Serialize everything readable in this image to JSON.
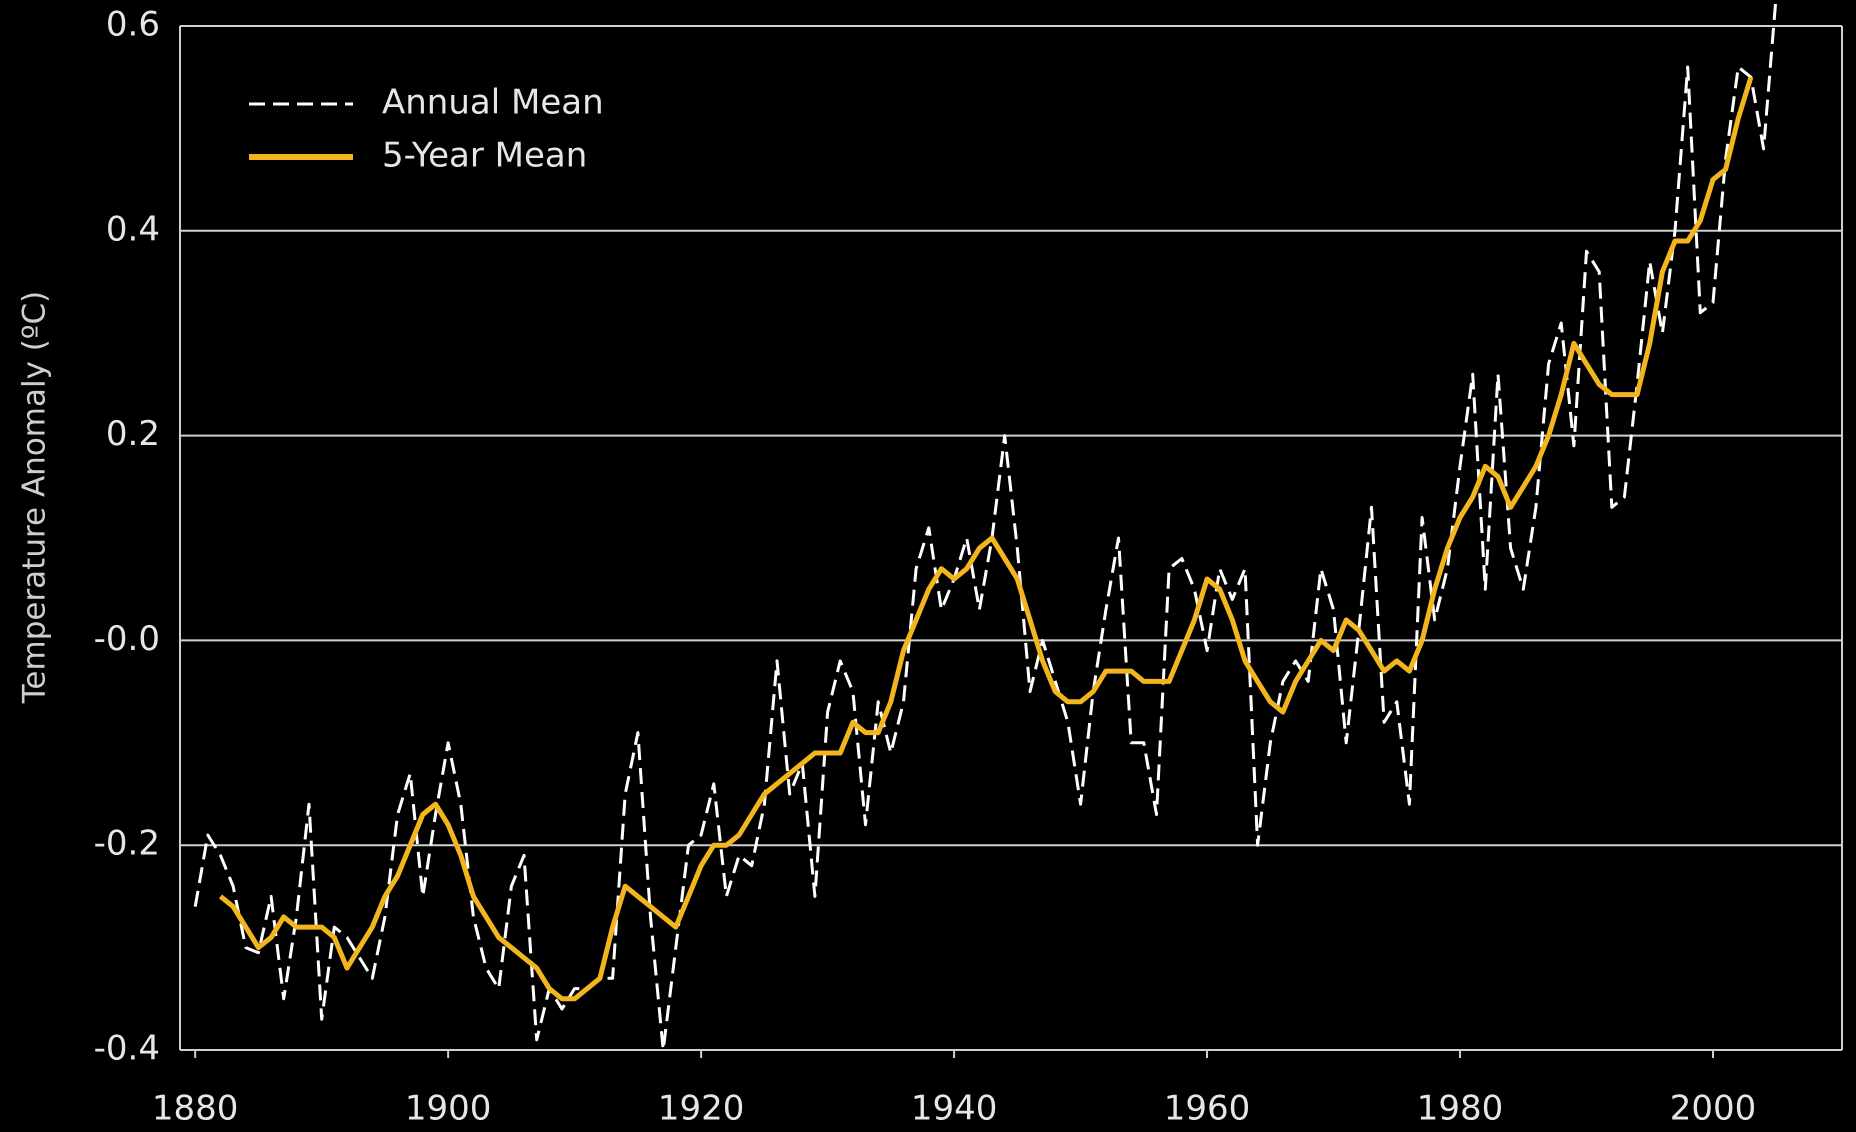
{
  "chart_data": {
    "type": "line",
    "y_label": "Temperature Anomaly (ºC)",
    "x": [
      1880,
      1881,
      1882,
      1883,
      1884,
      1885,
      1886,
      1887,
      1888,
      1889,
      1890,
      1891,
      1892,
      1893,
      1894,
      1895,
      1896,
      1897,
      1898,
      1899,
      1900,
      1901,
      1902,
      1903,
      1904,
      1905,
      1906,
      1907,
      1908,
      1909,
      1910,
      1911,
      1912,
      1913,
      1914,
      1915,
      1916,
      1917,
      1918,
      1919,
      1920,
      1921,
      1922,
      1923,
      1924,
      1925,
      1926,
      1927,
      1928,
      1929,
      1930,
      1931,
      1932,
      1933,
      1934,
      1935,
      1936,
      1937,
      1938,
      1939,
      1940,
      1941,
      1942,
      1943,
      1944,
      1945,
      1946,
      1947,
      1948,
      1949,
      1950,
      1951,
      1952,
      1953,
      1954,
      1955,
      1956,
      1957,
      1958,
      1959,
      1960,
      1961,
      1962,
      1963,
      1964,
      1965,
      1966,
      1967,
      1968,
      1969,
      1970,
      1971,
      1972,
      1973,
      1974,
      1975,
      1976,
      1977,
      1978,
      1979,
      1980,
      1981,
      1982,
      1983,
      1984,
      1985,
      1986,
      1987,
      1988,
      1989,
      1990,
      1991,
      1992,
      1993,
      1994,
      1995,
      1996,
      1997,
      1998,
      1999,
      2000,
      2001,
      2002,
      2003,
      2004,
      2005
    ],
    "series": [
      {
        "name": "Annual Mean",
        "color": "#ffffff",
        "dashed": true,
        "values": [
          -0.26,
          -0.19,
          -0.21,
          -0.24,
          -0.3,
          -0.305,
          -0.25,
          -0.35,
          -0.27,
          -0.16,
          -0.37,
          -0.28,
          -0.29,
          -0.31,
          -0.33,
          -0.27,
          -0.17,
          -0.13,
          -0.25,
          -0.17,
          -0.1,
          -0.16,
          -0.27,
          -0.32,
          -0.34,
          -0.24,
          -0.21,
          -0.39,
          -0.34,
          -0.36,
          -0.34,
          -0.34,
          -0.33,
          -0.33,
          -0.15,
          -0.09,
          -0.27,
          -0.4,
          -0.3,
          -0.2,
          -0.19,
          -0.14,
          -0.25,
          -0.21,
          -0.22,
          -0.16,
          -0.02,
          -0.15,
          -0.12,
          -0.25,
          -0.07,
          -0.02,
          -0.05,
          -0.18,
          -0.06,
          -0.11,
          -0.06,
          0.07,
          0.11,
          0.03,
          0.06,
          0.1,
          0.03,
          0.1,
          0.2,
          0.09,
          -0.05,
          0.0,
          -0.04,
          -0.08,
          -0.16,
          -0.05,
          0.03,
          0.1,
          -0.1,
          -0.1,
          -0.17,
          0.07,
          0.08,
          0.05,
          -0.01,
          0.07,
          0.04,
          0.07,
          -0.2,
          -0.1,
          -0.04,
          -0.02,
          -0.04,
          0.07,
          0.03,
          -0.1,
          0.01,
          0.13,
          -0.08,
          -0.06,
          -0.16,
          0.12,
          0.02,
          0.07,
          0.17,
          0.26,
          0.05,
          0.26,
          0.09,
          0.05,
          0.13,
          0.27,
          0.31,
          0.19,
          0.38,
          0.36,
          0.13,
          0.14,
          0.25,
          0.37,
          0.3,
          0.4,
          0.56,
          0.32,
          0.33,
          0.47,
          0.56,
          0.55,
          0.48,
          0.63
        ]
      },
      {
        "name": "5-Year Mean",
        "color": "#f2b51e",
        "dashed": false,
        "values": [
          null,
          null,
          -0.25,
          -0.26,
          -0.28,
          -0.3,
          -0.29,
          -0.27,
          -0.28,
          -0.28,
          -0.28,
          -0.29,
          -0.32,
          -0.3,
          -0.28,
          -0.25,
          -0.23,
          -0.2,
          -0.17,
          -0.16,
          -0.18,
          -0.21,
          -0.25,
          -0.27,
          -0.29,
          -0.3,
          -0.31,
          -0.32,
          -0.34,
          -0.35,
          -0.35,
          -0.34,
          -0.33,
          -0.28,
          -0.24,
          -0.25,
          -0.26,
          -0.27,
          -0.28,
          -0.25,
          -0.22,
          -0.2,
          -0.2,
          -0.19,
          -0.17,
          -0.15,
          -0.14,
          -0.13,
          -0.12,
          -0.11,
          -0.11,
          -0.11,
          -0.08,
          -0.09,
          -0.09,
          -0.06,
          -0.01,
          0.02,
          0.05,
          0.07,
          0.06,
          0.07,
          0.09,
          0.1,
          0.08,
          0.06,
          0.02,
          -0.02,
          -0.05,
          -0.06,
          -0.06,
          -0.05,
          -0.03,
          -0.03,
          -0.03,
          -0.04,
          -0.04,
          -0.04,
          -0.01,
          0.02,
          0.06,
          0.05,
          0.02,
          -0.02,
          -0.04,
          -0.06,
          -0.07,
          -0.04,
          -0.02,
          0.0,
          -0.01,
          0.02,
          0.01,
          -0.01,
          -0.03,
          -0.02,
          -0.03,
          0.0,
          0.05,
          0.09,
          0.12,
          0.14,
          0.17,
          0.16,
          0.13,
          0.15,
          0.17,
          0.2,
          0.24,
          0.29,
          0.27,
          0.25,
          0.24,
          0.24,
          0.24,
          0.29,
          0.36,
          0.39,
          0.39,
          0.41,
          0.45,
          0.46,
          0.51,
          0.55,
          null,
          null
        ]
      }
    ],
    "xlim": [
      1878.8,
      2010.2
    ],
    "xticks": [
      1880,
      1900,
      1920,
      1940,
      1960,
      1980,
      2000
    ],
    "ylim": [
      -0.4,
      0.6
    ],
    "yticks": [
      -0.4,
      -0.2,
      {
        "value": 0,
        "label": "-0.0"
      },
      0.2,
      0.4,
      0.6
    ],
    "grid": true,
    "legend": "upper left"
  }
}
